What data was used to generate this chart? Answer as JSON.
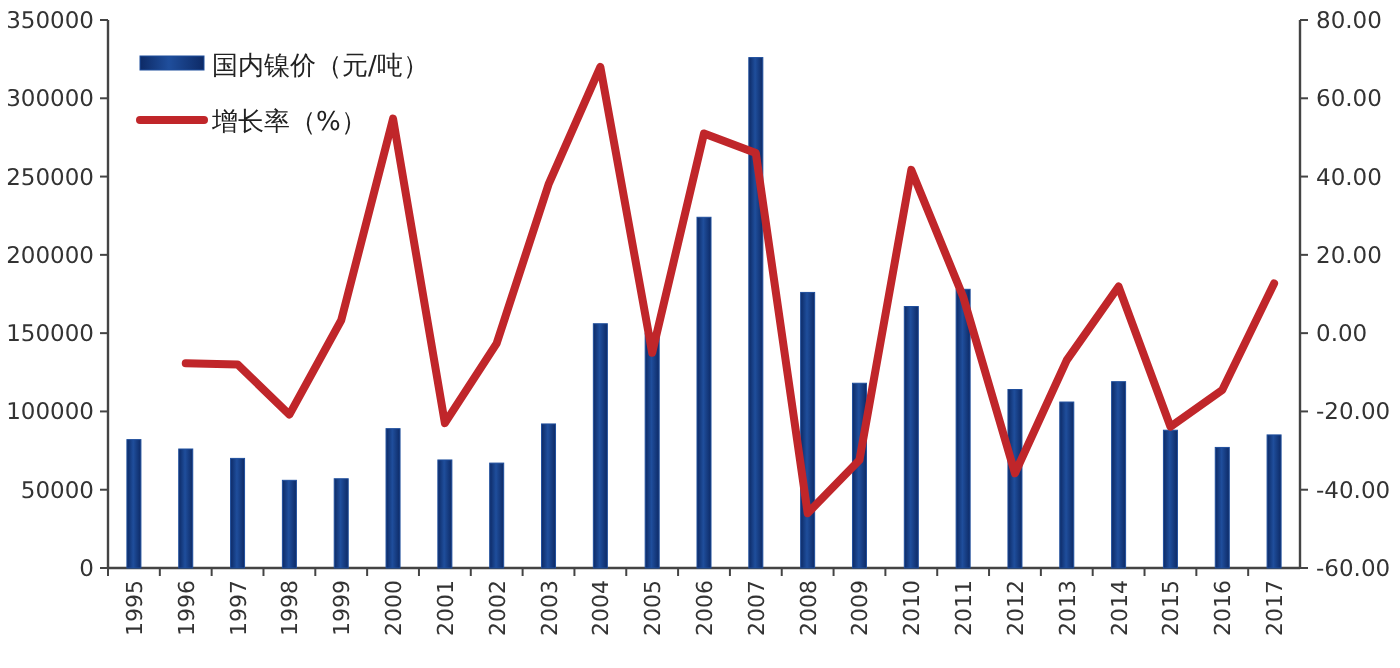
{
  "chart_data": {
    "type": "bar",
    "categories": [
      "1995",
      "1996",
      "1997",
      "1998",
      "1999",
      "2000",
      "2001",
      "2002",
      "2003",
      "2004",
      "2005",
      "2006",
      "2007",
      "2008",
      "2009",
      "2010",
      "2011",
      "2012",
      "2013",
      "2014",
      "2015",
      "2016",
      "2017"
    ],
    "series": [
      {
        "name": "国内镍价（元/吨）",
        "color": "#1f4e9c",
        "values": [
          82000,
          76000,
          70000,
          56000,
          57000,
          89000,
          69000,
          67000,
          92000,
          156000,
          150000,
          224000,
          326000,
          176000,
          118000,
          167000,
          178000,
          114000,
          106000,
          119000,
          88000,
          77000,
          85000
        ]
      },
      {
        "name": "增长率（%）",
        "type": "line",
        "axis": "y2",
        "color": "#c0262a",
        "values": [
          null,
          -7.7,
          -8,
          -20.8,
          3.3,
          54.8,
          -23,
          -2.6,
          38,
          68,
          -5,
          51,
          46,
          -46,
          -32.4,
          41.7,
          9.3,
          -35.8,
          -6.9,
          11.9,
          -23.9,
          -14.5,
          12.7
        ]
      }
    ],
    "ylim": [
      0,
      350000
    ],
    "yticks": [
      0,
      50000,
      100000,
      150000,
      200000,
      250000,
      300000,
      350000
    ],
    "y2lim": [
      -60,
      80
    ],
    "y2ticks": [
      {
        "value": -60,
        "label": "-60.00"
      },
      {
        "value": -40,
        "label": "-40.00"
      },
      {
        "value": -20,
        "label": "-20.00"
      },
      {
        "value": 0,
        "label": "0.00"
      },
      {
        "value": 20,
        "label": "20.00"
      },
      {
        "value": 40,
        "label": "40.00"
      },
      {
        "value": 60,
        "label": "60.00"
      },
      {
        "value": 80,
        "label": "80.00"
      }
    ],
    "legend": "top left"
  }
}
